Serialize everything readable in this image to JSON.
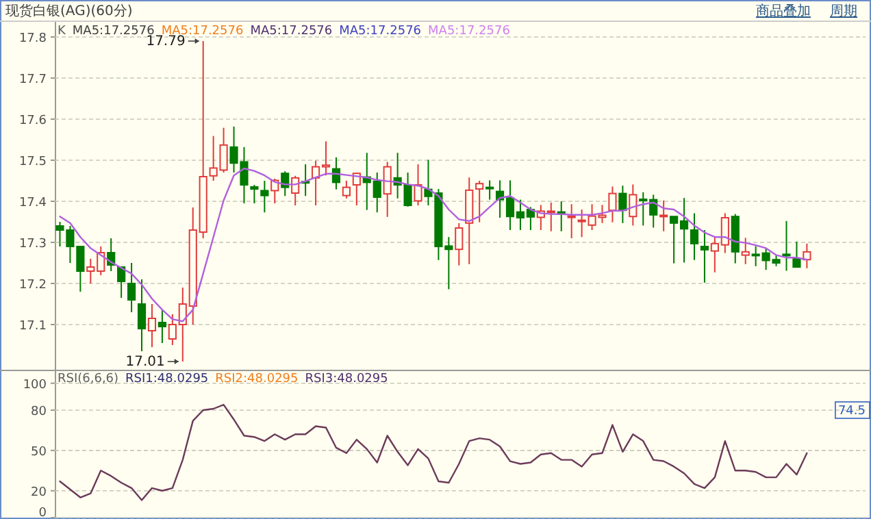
{
  "chart_data": [
    {
      "type": "candlestick",
      "title": "现货白银(AG)(60分)",
      "categories": [
        null,
        null,
        null,
        null,
        null,
        null,
        null,
        null,
        null,
        null,
        null,
        null,
        null,
        null,
        null,
        null,
        null,
        null,
        null,
        null,
        null,
        null,
        null,
        null,
        null,
        null,
        null,
        null,
        null,
        null,
        null,
        null,
        null,
        null,
        null,
        null,
        null,
        null,
        null,
        null,
        null,
        null,
        null,
        null,
        null,
        null,
        null,
        null,
        null,
        null,
        null,
        null,
        null,
        null,
        null,
        null,
        null,
        null,
        null,
        null,
        null,
        null,
        null,
        null,
        null,
        null,
        null,
        null,
        null,
        null,
        null,
        null,
        null,
        null
      ],
      "ohlc": [
        [
          17.34,
          17.35,
          17.29,
          17.33
        ],
        [
          17.33,
          17.34,
          17.25,
          17.29
        ],
        [
          17.29,
          17.29,
          17.18,
          17.23
        ],
        [
          17.23,
          17.26,
          17.2,
          17.24
        ],
        [
          17.23,
          17.29,
          17.22,
          17.275
        ],
        [
          17.275,
          17.31,
          17.23,
          17.245
        ],
        [
          17.24,
          17.24,
          17.165,
          17.205
        ],
        [
          17.2,
          17.25,
          17.13,
          17.16
        ],
        [
          17.15,
          17.21,
          17.035,
          17.09
        ],
        [
          17.085,
          17.15,
          17.045,
          17.115
        ],
        [
          17.105,
          17.135,
          17.055,
          17.095
        ],
        [
          17.065,
          17.125,
          17.05,
          17.1
        ],
        [
          17.1,
          17.19,
          17.01,
          17.15
        ],
        [
          17.145,
          17.385,
          17.1,
          17.33
        ],
        [
          17.325,
          17.79,
          17.31,
          17.46
        ],
        [
          17.462,
          17.559,
          17.45,
          17.481
        ],
        [
          17.476,
          17.579,
          17.47,
          17.537
        ],
        [
          17.532,
          17.582,
          17.47,
          17.493
        ],
        [
          17.496,
          17.532,
          17.395,
          17.44
        ],
        [
          17.435,
          17.44,
          17.395,
          17.43
        ],
        [
          17.426,
          17.45,
          17.373,
          17.414
        ],
        [
          17.426,
          17.455,
          17.395,
          17.451
        ],
        [
          17.468,
          17.473,
          17.413,
          17.434
        ],
        [
          17.42,
          17.462,
          17.39,
          17.457
        ],
        [
          17.448,
          17.49,
          17.413,
          17.445
        ],
        [
          17.457,
          17.499,
          17.39,
          17.484
        ],
        [
          17.484,
          17.546,
          17.463,
          17.488
        ],
        [
          17.479,
          17.507,
          17.429,
          17.446
        ],
        [
          17.414,
          17.45,
          17.407,
          17.434
        ],
        [
          17.44,
          17.47,
          17.39,
          17.468
        ],
        [
          17.459,
          17.518,
          17.379,
          17.446
        ],
        [
          17.449,
          17.47,
          17.373,
          17.41
        ],
        [
          17.418,
          17.496,
          17.362,
          17.484
        ],
        [
          17.457,
          17.518,
          17.407,
          17.44
        ],
        [
          17.44,
          17.47,
          17.387,
          17.39
        ],
        [
          17.401,
          17.49,
          17.39,
          17.44
        ],
        [
          17.429,
          17.501,
          17.39,
          17.412
        ],
        [
          17.42,
          17.43,
          17.257,
          17.29
        ],
        [
          17.291,
          17.313,
          17.186,
          17.283
        ],
        [
          17.283,
          17.347,
          17.244,
          17.335
        ],
        [
          17.347,
          17.458,
          17.247,
          17.427
        ],
        [
          17.43,
          17.45,
          17.349,
          17.443
        ],
        [
          17.434,
          17.451,
          17.404,
          17.431
        ],
        [
          17.424,
          17.451,
          17.36,
          17.404
        ],
        [
          17.408,
          17.451,
          17.33,
          17.363
        ],
        [
          17.374,
          17.404,
          17.33,
          17.36
        ],
        [
          17.38,
          17.386,
          17.33,
          17.362
        ],
        [
          17.361,
          17.391,
          17.33,
          17.376
        ],
        [
          17.373,
          17.397,
          17.327,
          17.376
        ],
        [
          17.374,
          17.4,
          17.327,
          17.369
        ],
        [
          17.361,
          17.393,
          17.31,
          17.364
        ],
        [
          17.352,
          17.38,
          17.313,
          17.354
        ],
        [
          17.342,
          17.393,
          17.33,
          17.364
        ],
        [
          17.361,
          17.391,
          17.347,
          17.366
        ],
        [
          17.378,
          17.436,
          17.349,
          17.419
        ],
        [
          17.419,
          17.438,
          17.347,
          17.378
        ],
        [
          17.363,
          17.441,
          17.341,
          17.416
        ],
        [
          17.405,
          17.422,
          17.341,
          17.404
        ],
        [
          17.404,
          17.416,
          17.336,
          17.367
        ],
        [
          17.363,
          17.402,
          17.327,
          17.366
        ],
        [
          17.363,
          17.363,
          17.249,
          17.347
        ],
        [
          17.352,
          17.408,
          17.251,
          17.333
        ],
        [
          17.33,
          17.371,
          17.257,
          17.297
        ],
        [
          17.29,
          17.33,
          17.202,
          17.282
        ],
        [
          17.279,
          17.313,
          17.227,
          17.297
        ],
        [
          17.294,
          17.371,
          17.274,
          17.36
        ],
        [
          17.363,
          17.369,
          17.249,
          17.277
        ],
        [
          17.269,
          17.311,
          17.247,
          17.277
        ],
        [
          17.271,
          17.291,
          17.242,
          17.269
        ],
        [
          17.274,
          17.286,
          17.233,
          17.256
        ],
        [
          17.258,
          17.269,
          17.242,
          17.25
        ],
        [
          17.271,
          17.352,
          17.231,
          17.268
        ],
        [
          17.26,
          17.302,
          17.24,
          17.24
        ],
        [
          17.258,
          17.297,
          17.237,
          17.277
        ]
      ],
      "series": [
        {
          "type": "line",
          "color": "#b060e0",
          "values": [
            17.363,
            17.347,
            17.313,
            17.286,
            17.269,
            17.252,
            17.238,
            17.224,
            17.197,
            17.163,
            17.136,
            17.113,
            17.108,
            17.136,
            17.224,
            17.313,
            17.402,
            17.463,
            17.48,
            17.474,
            17.463,
            17.447,
            17.441,
            17.441,
            17.449,
            17.458,
            17.467,
            17.467,
            17.464,
            17.461,
            17.458,
            17.452,
            17.449,
            17.447,
            17.441,
            17.438,
            17.43,
            17.413,
            17.38,
            17.356,
            17.352,
            17.363,
            17.386,
            17.408,
            17.413,
            17.397,
            17.38,
            17.371,
            17.369,
            17.369,
            17.367,
            17.367,
            17.367,
            17.371,
            17.377,
            17.377,
            17.386,
            17.393,
            17.397,
            17.383,
            17.38,
            17.363,
            17.341,
            17.324,
            17.313,
            17.313,
            17.302,
            17.299,
            17.293,
            17.286,
            17.269,
            17.263,
            17.263,
            17.258
          ]
        }
      ],
      "ylim": [
        16.99,
        17.83
      ],
      "yticks": [
        17.1,
        17.2,
        17.3,
        17.4,
        17.5,
        17.6,
        17.7,
        17.8
      ],
      "grid": "y",
      "tick_labels": "y",
      "annotations": [
        "K",
        "MA5:17.2576",
        "MA5:17.2576",
        "MA5:17.2576",
        "MA5:17.2576",
        "MA5:17.2576",
        "商品叠加",
        "周期",
        "17.79",
        "17.01"
      ]
    },
    {
      "type": "line",
      "categories": [
        null,
        null,
        null,
        null,
        null,
        null,
        null,
        null,
        null,
        null,
        null,
        null,
        null,
        null,
        null,
        null,
        null,
        null,
        null,
        null,
        null,
        null,
        null,
        null,
        null,
        null,
        null,
        null,
        null,
        null,
        null,
        null,
        null,
        null,
        null,
        null,
        null,
        null,
        null,
        null,
        null,
        null,
        null,
        null,
        null,
        null,
        null,
        null,
        null,
        null,
        null,
        null,
        null,
        null,
        null,
        null,
        null,
        null,
        null,
        null,
        null,
        null,
        null,
        null,
        null,
        null,
        null,
        null,
        null,
        null,
        null,
        null,
        null,
        null
      ],
      "series": [
        {
          "color": "#6b3a5a",
          "values": [
            27,
            21,
            15,
            18,
            35,
            31,
            26,
            22,
            13,
            22,
            20,
            22,
            43,
            72,
            80,
            81,
            84,
            73,
            61,
            60,
            57,
            62,
            58,
            62,
            62,
            68,
            67,
            52,
            48,
            58,
            51,
            41,
            61,
            49,
            39,
            51,
            44,
            27,
            26,
            40,
            57,
            59,
            58,
            53,
            42,
            40,
            41,
            47,
            48,
            43,
            43,
            38,
            47,
            48,
            69,
            49,
            62,
            57,
            43,
            42,
            38,
            33,
            25,
            22,
            30,
            57,
            35,
            35,
            34,
            30,
            30,
            40,
            32,
            48
          ]
        }
      ],
      "ylim": [
        0,
        108
      ],
      "yticks": [
        0,
        20,
        50,
        80,
        100
      ],
      "grid": "y",
      "tick_labels": "y",
      "annotations": [
        "RSI(6,6,6)",
        "RSI1:48.0295",
        "RSI2:48.0295",
        "RSI3:48.0295",
        "74.5"
      ]
    }
  ]
}
